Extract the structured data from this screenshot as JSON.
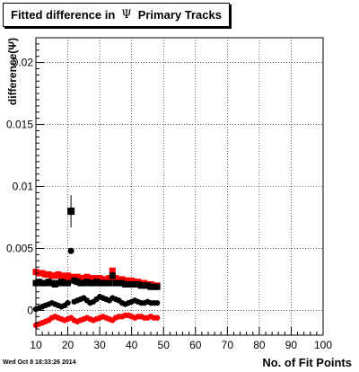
{
  "title": {
    "prefix": "Fitted difference in",
    "symbol": "Ψ",
    "suffix": "Primary Tracks"
  },
  "timestamp": "Wed Oct  8 18:33:26 2014",
  "chart_data": {
    "type": "scatter",
    "xlabel": "No. of Fit Points",
    "ylabel": "difference(Ψ)",
    "xlim": [
      10,
      100
    ],
    "ylim": [
      -0.002,
      0.022
    ],
    "x_ticks": [
      10,
      20,
      30,
      40,
      50,
      60,
      70,
      80,
      90,
      100
    ],
    "y_ticks": [
      0,
      0.005,
      0.01,
      0.015,
      0.02
    ],
    "y_tick_labels": [
      "0",
      "0.005",
      "0.01",
      "0.015",
      "0.02"
    ],
    "grid": true,
    "x": [
      10,
      11,
      12,
      13,
      14,
      15,
      16,
      17,
      18,
      19,
      20,
      21,
      22,
      23,
      24,
      25,
      26,
      27,
      28,
      29,
      30,
      31,
      32,
      33,
      34,
      35,
      36,
      37,
      38,
      39,
      40,
      41,
      42,
      43,
      44,
      45,
      46,
      47,
      48
    ],
    "series": [
      {
        "color": "#ff0000",
        "marker": "square",
        "values": [
          0.0031,
          0.003,
          0.003,
          0.0029,
          0.0029,
          0.0028,
          0.0028,
          0.0029,
          0.0028,
          0.0027,
          0.0028,
          0.0027,
          0.0026,
          0.0027,
          0.0026,
          0.0026,
          0.0027,
          0.0026,
          0.0025,
          0.0026,
          0.0026,
          0.0025,
          0.0025,
          0.0026,
          0.0032,
          0.0026,
          0.0025,
          0.0025,
          0.0024,
          0.0024,
          0.0024,
          0.0023,
          0.0023,
          0.0022,
          0.0022,
          0.0021,
          0.0021,
          0.002,
          0.002
        ]
      },
      {
        "color": "#000000",
        "marker": "square",
        "values": [
          0.0022,
          0.0023,
          0.0022,
          0.0022,
          0.0023,
          0.0022,
          0.0021,
          0.0022,
          0.0023,
          0.0022,
          0.0022,
          0.008,
          0.0024,
          0.0023,
          0.0022,
          0.0022,
          0.0023,
          0.0022,
          0.0022,
          0.0023,
          0.0022,
          0.0022,
          0.0022,
          0.0022,
          0.0028,
          0.0022,
          0.0022,
          0.0022,
          0.0021,
          0.0021,
          0.0021,
          0.0021,
          0.0021,
          0.002,
          0.002,
          0.002,
          0.0019,
          0.0019,
          0.0019
        ],
        "errors": [
          0.0002,
          0.0002,
          0.0002,
          0.0002,
          0.0002,
          0.0002,
          0.0002,
          0.0002,
          0.0002,
          0.0002,
          0.0002,
          0.0013,
          0.0003,
          0.0002,
          0.0002,
          0.0002,
          0.0002,
          0.0002,
          0.0002,
          0.0002,
          0.0002,
          0.0002,
          0.0002,
          0.0002,
          0.0003,
          0.0002,
          0.0002,
          0.0002,
          0.0002,
          0.0002,
          0.0002,
          0.0002,
          0.0002,
          0.0002,
          0.0002,
          0.0002,
          0.0002,
          0.0002,
          0.0002
        ]
      },
      {
        "color": "#000000",
        "marker": "circle",
        "values": [
          0.0001,
          0.0002,
          0.0003,
          0.0004,
          0.0005,
          0.0006,
          0.0005,
          0.0004,
          0.0003,
          0.0004,
          0.0006,
          0.0048,
          0.0007,
          0.0008,
          0.0009,
          0.001,
          0.0008,
          0.0006,
          0.0007,
          0.0009,
          0.0011,
          0.001,
          0.0009,
          0.0008,
          0.001,
          0.0009,
          0.0008,
          0.0006,
          0.0005,
          0.0006,
          0.0007,
          0.0008,
          0.0007,
          0.0006,
          0.0006,
          0.0007,
          0.0006,
          0.0006,
          0.0006
        ]
      },
      {
        "color": "#ff0000",
        "marker": "circle",
        "values": [
          -0.0012,
          -0.0011,
          -0.001,
          -0.0009,
          -0.0008,
          -0.0006,
          -0.0005,
          -0.0006,
          -0.0007,
          -0.0008,
          -0.0007,
          -0.0006,
          -0.0008,
          -0.0009,
          -0.0008,
          -0.0007,
          -0.0006,
          -0.0007,
          -0.0008,
          -0.0007,
          -0.0006,
          -0.0005,
          -0.0006,
          -0.0007,
          -0.0008,
          -0.0006,
          -0.0005,
          -0.0005,
          -0.0004,
          -0.0004,
          -0.0005,
          -0.0006,
          -0.0005,
          -0.0005,
          -0.0006,
          -0.0006,
          -0.0005,
          -0.0006,
          -0.0006
        ]
      }
    ]
  }
}
